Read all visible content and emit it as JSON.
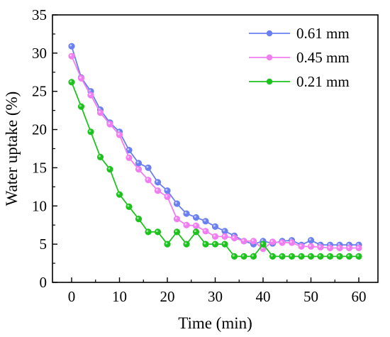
{
  "chart_data": {
    "type": "line",
    "title": "",
    "xlabel": "Time (min)",
    "ylabel": "Water uptake (%)",
    "xlim": [
      -4,
      64
    ],
    "ylim": [
      0,
      35
    ],
    "xticks": [
      0,
      10,
      20,
      30,
      40,
      50,
      60
    ],
    "yticks": [
      0,
      5,
      10,
      15,
      20,
      25,
      30,
      35
    ],
    "grid": false,
    "legend_position": "top-right",
    "series": [
      {
        "name": "0.61 mm",
        "color": "#6a7ff0",
        "x": [
          0,
          2,
          4,
          6,
          8,
          10,
          12,
          14,
          16,
          18,
          20,
          22,
          24,
          26,
          28,
          30,
          32,
          34,
          36,
          38,
          40,
          42,
          44,
          46,
          48,
          50,
          52,
          54,
          56,
          58,
          60
        ],
        "y": [
          30.9,
          26.8,
          25.0,
          22.6,
          20.9,
          19.7,
          17.3,
          15.6,
          15.0,
          13.1,
          12.0,
          10.3,
          9.0,
          8.5,
          8.0,
          7.3,
          6.7,
          6.1,
          5.4,
          5.0,
          5.4,
          5.1,
          5.4,
          5.5,
          4.9,
          5.5,
          4.9,
          4.9,
          4.9,
          4.9,
          4.9
        ]
      },
      {
        "name": "0.45 mm",
        "color": "#f07ef0",
        "x": [
          0,
          2,
          4,
          6,
          8,
          10,
          12,
          14,
          16,
          18,
          20,
          22,
          24,
          26,
          28,
          30,
          32,
          34,
          36,
          38,
          40,
          42,
          44,
          46,
          48,
          50,
          52,
          54,
          56,
          58,
          60
        ],
        "y": [
          29.6,
          26.7,
          24.5,
          22.2,
          20.7,
          19.3,
          16.3,
          14.8,
          13.4,
          12.0,
          11.2,
          8.3,
          7.5,
          7.4,
          6.7,
          6.0,
          6.0,
          5.8,
          5.4,
          5.4,
          4.4,
          5.3,
          5.2,
          5.2,
          4.7,
          4.7,
          4.6,
          4.5,
          4.5,
          4.5,
          4.5
        ]
      },
      {
        "name": "0.21 mm",
        "color": "#1ec21e",
        "x": [
          0,
          2,
          4,
          6,
          8,
          10,
          12,
          14,
          16,
          18,
          20,
          22,
          24,
          26,
          28,
          30,
          32,
          34,
          36,
          38,
          40,
          42,
          44,
          46,
          48,
          50,
          52,
          54,
          56,
          58,
          60
        ],
        "y": [
          26.2,
          23.0,
          19.7,
          16.4,
          14.8,
          11.5,
          9.9,
          8.3,
          6.6,
          6.6,
          5.0,
          6.6,
          5.0,
          6.6,
          5.0,
          5.0,
          5.0,
          3.4,
          3.4,
          3.4,
          5.0,
          3.4,
          3.4,
          3.4,
          3.4,
          3.4,
          3.4,
          3.4,
          3.4,
          3.4,
          3.4
        ]
      }
    ]
  }
}
